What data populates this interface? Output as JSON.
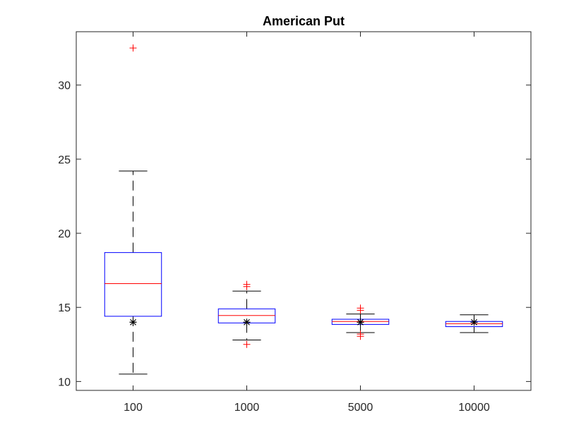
{
  "chart_data": {
    "type": "box",
    "title": "American Put",
    "xlabel": "",
    "ylabel": "",
    "categories": [
      "100",
      "1000",
      "5000",
      "10000"
    ],
    "ylim": [
      9.4,
      33.6
    ],
    "yticks": [
      10,
      15,
      20,
      25,
      30
    ],
    "grid": false,
    "colors": {
      "box": "#0000ff",
      "median": "#ff0000",
      "outlier": "#ff0000",
      "whisker": "#000000",
      "marker": "#000000"
    },
    "boxes": [
      {
        "category": "100",
        "lower_whisker": 10.5,
        "q1": 14.4,
        "median": 16.6,
        "q3": 18.7,
        "upper_whisker": 24.2,
        "outliers": [
          32.5
        ],
        "marker": 14.0
      },
      {
        "category": "1000",
        "lower_whisker": 12.8,
        "q1": 13.95,
        "median": 14.45,
        "q3": 14.9,
        "upper_whisker": 16.1,
        "outliers": [
          16.4,
          16.55,
          12.5
        ],
        "marker": 14.0
      },
      {
        "category": "5000",
        "lower_whisker": 13.3,
        "q1": 13.85,
        "median": 14.05,
        "q3": 14.2,
        "upper_whisker": 14.55,
        "outliers": [
          14.8,
          14.95,
          13.05,
          13.2
        ],
        "marker": 14.0
      },
      {
        "category": "10000",
        "lower_whisker": 13.3,
        "q1": 13.7,
        "median": 13.9,
        "q3": 14.05,
        "upper_whisker": 14.5,
        "outliers": [],
        "marker": 14.0
      }
    ]
  }
}
